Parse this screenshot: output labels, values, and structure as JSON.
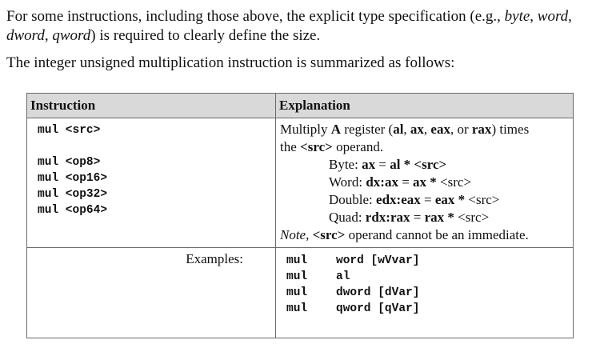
{
  "paragraph1": {
    "pre": "For some instructions, including those above, the explicit type specification (e.g., ",
    "t1": "byte",
    "sep1": ", ",
    "t2": "word",
    "sep2": ", ",
    "t3": "dword",
    "sep3": ", ",
    "t4": "qword",
    "post": ") is required to clearly define the size."
  },
  "paragraph2": "The integer unsigned multiplication instruction is summarized as follows:",
  "table": {
    "headers": [
      "Instruction",
      "Explanation"
    ],
    "instructions": {
      "general": "mul <src>",
      "forms": [
        "mul <op8>",
        "mul <op16>",
        "mul <op32>",
        "mul <op64>"
      ]
    },
    "explanation": {
      "l1_a": "Multiply ",
      "l1_b": "A",
      "l1_c": " register (",
      "l1_d": "al",
      "l1_e": ", ",
      "l1_f": "ax",
      "l1_g": ", ",
      "l1_h": "eax",
      "l1_i": ", or ",
      "l1_j": "rax",
      "l1_k": ") times",
      "l2_a": "the ",
      "l2_b": "<src>",
      "l2_c": " operand.",
      "cases": [
        {
          "label": "Byte:  ",
          "dest": "ax",
          "eq": " = ",
          "src": "al",
          "op": " * ",
          "operand": "<src>"
        },
        {
          "label": "Word:  ",
          "dest": "dx:ax",
          "eq": " = ",
          "src": "ax",
          "op": " * ",
          "operand": "<src>"
        },
        {
          "label": "Double:  ",
          "dest": "edx:eax",
          "eq": " = ",
          "src": "eax",
          "op": " * ",
          "operand": "<src>"
        },
        {
          "label": "Quad:  ",
          "dest": "rdx:rax",
          "eq": " = ",
          "src": "rax",
          "op": " * ",
          "operand": "<src>"
        }
      ],
      "note_a": "Note",
      "note_b": ", ",
      "note_c": "<src>",
      "note_d": " operand cannot be an immediate."
    },
    "examples_label": "Examples:",
    "examples": [
      {
        "op": "mul",
        "arg": "word [wVvar]"
      },
      {
        "op": "mul",
        "arg": "al"
      },
      {
        "op": "mul",
        "arg": "dword [dVar]"
      },
      {
        "op": "mul",
        "arg": "qword [qVar]"
      }
    ]
  }
}
